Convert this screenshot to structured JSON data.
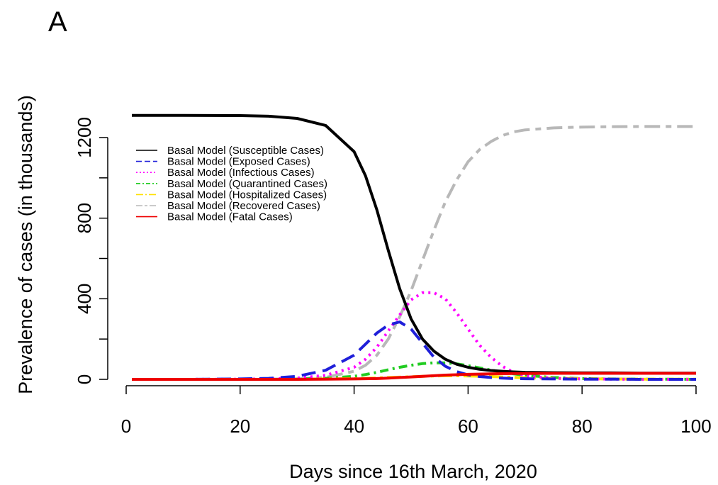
{
  "panel_label": "A",
  "chart_data": {
    "type": "line",
    "xlabel": "Days since 16th March, 2020",
    "ylabel": "Prevalence of cases (in thousands)",
    "xlim": [
      1,
      100
    ],
    "ylim": [
      0,
      1300
    ],
    "x_ticks": [
      0,
      20,
      40,
      60,
      80,
      100
    ],
    "y_ticks": [
      0,
      200,
      400,
      600,
      800,
      1000,
      1200
    ],
    "y_tick_labels": [
      "0",
      "",
      "400",
      "",
      "800",
      "",
      "1200"
    ],
    "grid": false,
    "legend_position": "top-left",
    "x": [
      1,
      10,
      20,
      25,
      30,
      35,
      40,
      42,
      44,
      46,
      48,
      50,
      52,
      54,
      56,
      58,
      60,
      62,
      64,
      66,
      68,
      70,
      75,
      80,
      85,
      90,
      95,
      100
    ],
    "series": [
      {
        "name": "Basal Model (Susceptible Cases)",
        "color": "#000000",
        "dash": "solid",
        "values": [
          1310,
          1310,
          1309,
          1306,
          1295,
          1260,
          1130,
          1010,
          840,
          640,
          450,
          300,
          200,
          140,
          100,
          75,
          60,
          50,
          44,
          40,
          37,
          35,
          33,
          32,
          32,
          31,
          31,
          31
        ]
      },
      {
        "name": "Basal Model (Exposed Cases)",
        "color": "#1f1fd9",
        "dash": "long-dash",
        "values": [
          0,
          0,
          2,
          5,
          15,
          45,
          120,
          175,
          230,
          270,
          285,
          250,
          180,
          110,
          65,
          38,
          22,
          14,
          9,
          6,
          4,
          3,
          2,
          1,
          1,
          0,
          0,
          0
        ]
      },
      {
        "name": "Basal Model (Infectious Cases)",
        "color": "#ff00ff",
        "dash": "dotted",
        "values": [
          0,
          0,
          1,
          2,
          6,
          20,
          60,
          100,
          160,
          240,
          320,
          395,
          430,
          430,
          400,
          330,
          250,
          170,
          110,
          65,
          35,
          18,
          5,
          2,
          1,
          0,
          0,
          0
        ]
      },
      {
        "name": "Basal Model (Quarantined Cases)",
        "color": "#22cc22",
        "dash": "dash-dot",
        "values": [
          0,
          0,
          0,
          1,
          2,
          5,
          15,
          24,
          35,
          48,
          60,
          70,
          78,
          82,
          82,
          77,
          68,
          57,
          46,
          36,
          27,
          20,
          9,
          4,
          2,
          1,
          1,
          0
        ]
      },
      {
        "name": "Basal Model (Hospitalized Cases)",
        "color": "#ffe000",
        "dash": "long-dash-dot",
        "values": [
          0,
          0,
          0,
          0,
          1,
          2,
          4,
          5,
          7,
          9,
          11,
          13,
          15,
          17,
          18,
          18,
          17,
          16,
          14,
          12,
          10,
          8,
          5,
          3,
          2,
          1,
          1,
          1
        ]
      },
      {
        "name": "Basal Model (Recovered Cases)",
        "color": "#b8b8b8",
        "dash": "two-dash",
        "values": [
          0,
          0,
          0,
          1,
          3,
          10,
          40,
          70,
          120,
          200,
          310,
          440,
          590,
          740,
          880,
          990,
          1080,
          1140,
          1180,
          1210,
          1228,
          1238,
          1248,
          1252,
          1254,
          1255,
          1255,
          1255
        ]
      },
      {
        "name": "Basal Model (Fatal Cases)",
        "color": "#ee0000",
        "dash": "solid",
        "values": [
          0,
          0,
          0,
          0,
          0,
          1,
          2,
          3,
          4,
          6,
          9,
          12,
          15,
          18,
          21,
          23,
          25,
          26,
          27,
          28,
          29,
          29,
          30,
          30,
          30,
          30,
          30,
          30
        ]
      }
    ]
  }
}
